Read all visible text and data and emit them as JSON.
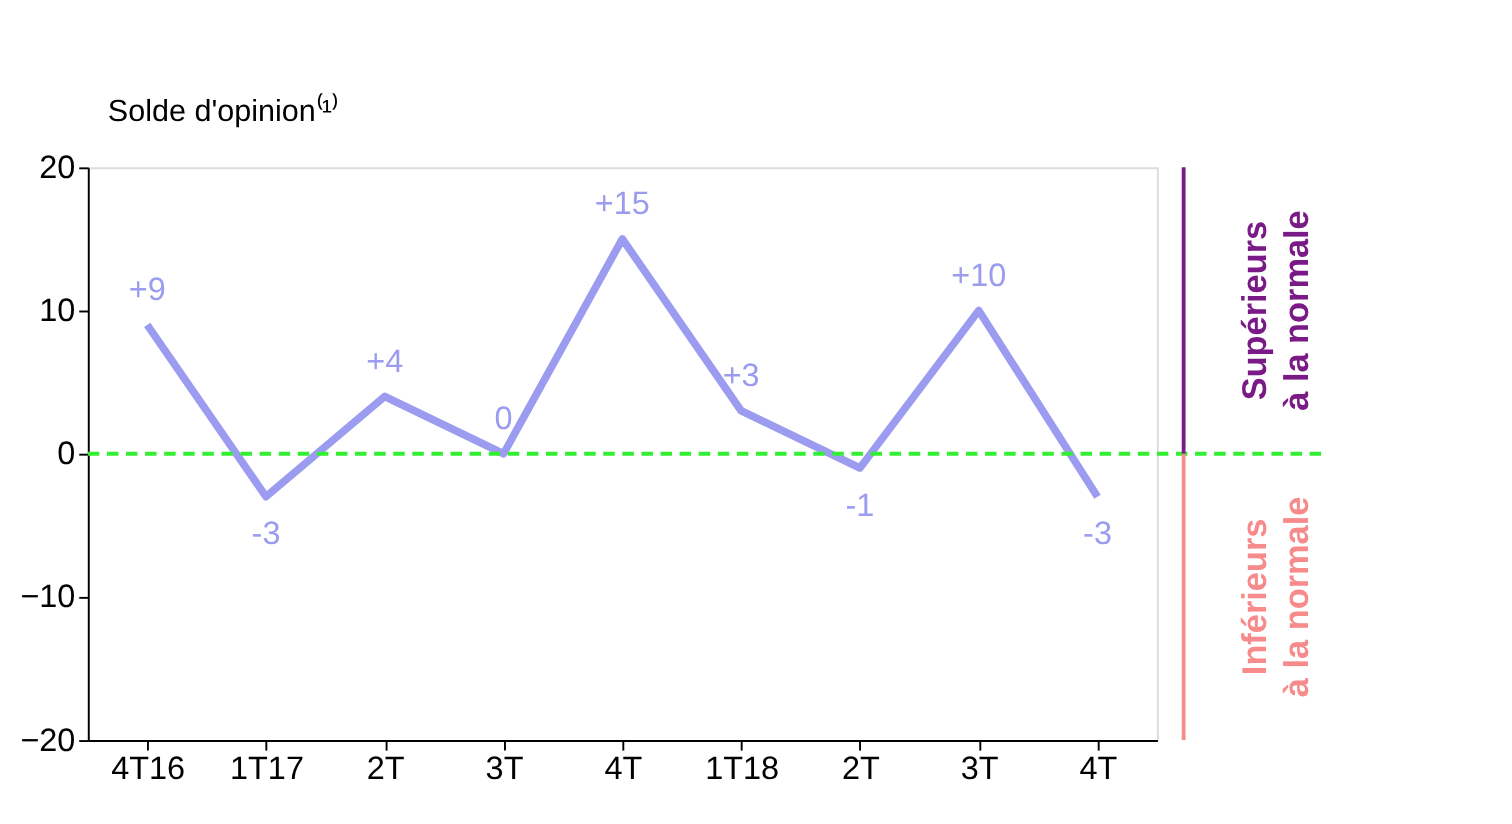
{
  "chart_data": {
    "type": "line",
    "ylabel": "Solde d'opinion⁽¹⁾",
    "categories": [
      "4T16",
      "1T17",
      "2T",
      "3T",
      "4T",
      "1T18",
      "2T",
      "3T",
      "4T"
    ],
    "series": [
      {
        "color": "#9b9cf0",
        "values": [
          9,
          -3,
          4,
          0,
          15,
          3,
          -1,
          10,
          -3
        ],
        "value_labels": [
          "+9",
          "-3",
          "+4",
          "0",
          "+15",
          "+3",
          "-1",
          "+10",
          "-3"
        ]
      }
    ],
    "ylim": [
      -20,
      20
    ],
    "yticks": [
      -20,
      -10,
      0,
      10,
      20
    ],
    "grid": false,
    "marker": "none",
    "line_style": "solid",
    "ref_lines": [
      {
        "axis": "y",
        "value": 0,
        "label": null,
        "color": "#33ee33",
        "line_style": "dashed"
      }
    ],
    "annotations": [
      "Supérieurs\nà la normale",
      "Inférieurs\nà la normale"
    ]
  }
}
